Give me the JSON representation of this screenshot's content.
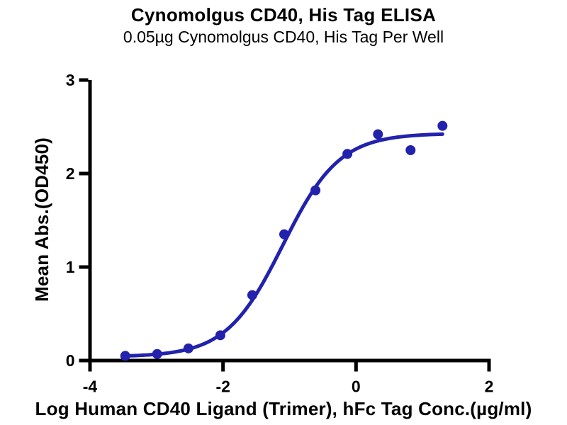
{
  "chart_data": {
    "type": "scatter",
    "title": "Cynomolgus CD40, His Tag ELISA",
    "subtitle": "0.05µg Cynomolgus CD40, His Tag Per Well",
    "xlabel": "Log Human CD40 Ligand (Trimer), hFc Tag Conc.(µg/ml)",
    "ylabel": "Mean Abs.(OD450)",
    "xlim": [
      -4,
      2
    ],
    "ylim": [
      0,
      3
    ],
    "xticks": [
      -4,
      -2,
      0,
      2
    ],
    "yticks": [
      0,
      1,
      2,
      3
    ],
    "grid": false,
    "legend": "none",
    "point_color": "#2222ad",
    "curve_color": "#2222ad",
    "axis_color": "#000000",
    "series": [
      {
        "name": "Cynomolgus CD40, His Tag",
        "x": [
          -3.47,
          -2.99,
          -2.52,
          -2.04,
          -1.56,
          -1.08,
          -0.61,
          -0.13,
          0.33,
          0.82,
          1.3
        ],
        "y": [
          0.05,
          0.07,
          0.13,
          0.27,
          0.7,
          1.35,
          1.82,
          2.21,
          2.42,
          2.25,
          2.51
        ]
      }
    ],
    "fit_curve": {
      "model": "four_parameter_logistic",
      "bottom": 0.04,
      "top": 2.43,
      "logEC50": -1.1,
      "hill": 1.02,
      "x_range": [
        -3.47,
        1.3
      ]
    }
  }
}
